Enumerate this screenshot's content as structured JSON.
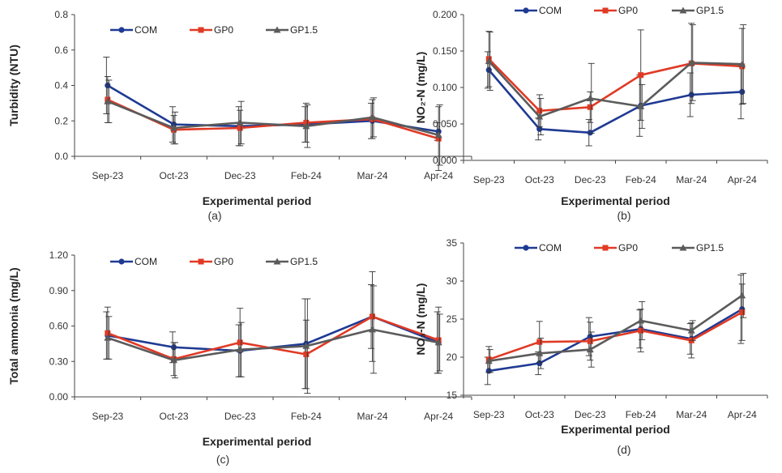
{
  "figure": {
    "colors": {
      "COM": "#1f3a93",
      "GP0": "#e03a25",
      "GP1.5": "#5b5b5b"
    },
    "legend": [
      "COM",
      "GP0",
      "GP1.5"
    ]
  },
  "chart_data": [
    {
      "id": "a",
      "type": "line",
      "panel_label": "(a)",
      "title": "",
      "xlabel": "Experimental period",
      "ylabel": "Turbidity (NTU)",
      "categories": [
        "Sep-23",
        "Oct-23",
        "Dec-23",
        "Feb-24",
        "Mar-24",
        "Apr-24"
      ],
      "ylim": [
        0,
        0.8
      ],
      "yticks": [
        0,
        0.2,
        0.4,
        0.6,
        0.8
      ],
      "ytick_labels": [
        "0.0",
        "0.2",
        "0.4",
        "0.6",
        "0.8"
      ],
      "series": [
        {
          "name": "COM",
          "values": [
            0.4,
            0.18,
            0.17,
            0.18,
            0.2,
            0.14
          ],
          "errors": [
            0.16,
            0.1,
            0.11,
            0.1,
            0.1,
            0.05
          ]
        },
        {
          "name": "GP0",
          "values": [
            0.32,
            0.15,
            0.16,
            0.19,
            0.21,
            0.1
          ],
          "errors": [
            0.13,
            0.08,
            0.1,
            0.11,
            0.11,
            0.18
          ]
        },
        {
          "name": "GP1.5",
          "values": [
            0.31,
            0.16,
            0.19,
            0.17,
            0.22,
            0.12
          ],
          "errors": [
            0.12,
            0.09,
            0.12,
            0.12,
            0.11,
            0.17
          ]
        }
      ]
    },
    {
      "id": "b",
      "type": "line",
      "panel_label": "(b)",
      "title": "",
      "xlabel": "Experimental period",
      "ylabel": "NO₂-N  (mg/L)",
      "categories": [
        "Sep-23",
        "Oct-23",
        "Dec-23",
        "Feb-24",
        "Mar-24",
        "Apr-24"
      ],
      "ylim": [
        0,
        0.2
      ],
      "yticks": [
        0,
        0.05,
        0.1,
        0.15,
        0.2
      ],
      "ytick_labels": [
        "0.000",
        "0.050",
        "0.100",
        "0.150",
        "0.200"
      ],
      "series": [
        {
          "name": "COM",
          "values": [
            0.124,
            0.043,
            0.038,
            0.075,
            0.09,
            0.094
          ],
          "errors": [
            0.025,
            0.015,
            0.018,
            0.042,
            0.03,
            0.037
          ]
        },
        {
          "name": "GP0",
          "values": [
            0.139,
            0.068,
            0.073,
            0.117,
            0.133,
            0.129
          ],
          "errors": [
            0.038,
            0.022,
            0.021,
            0.062,
            0.055,
            0.052
          ]
        },
        {
          "name": "GP1.5",
          "values": [
            0.136,
            0.06,
            0.085,
            0.074,
            0.134,
            0.132
          ],
          "errors": [
            0.04,
            0.025,
            0.048,
            0.03,
            0.052,
            0.054
          ]
        }
      ]
    },
    {
      "id": "c",
      "type": "line",
      "panel_label": "(c)",
      "title": "",
      "xlabel": "Experimental period",
      "ylabel": "Total ammonia (mg/L)",
      "categories": [
        "Sep-23",
        "Oct-23",
        "Dec-23",
        "Feb-24",
        "Mar-24",
        "Apr-24"
      ],
      "ylim": [
        0,
        1.2
      ],
      "yticks": [
        0,
        0.3,
        0.6,
        0.9,
        1.2
      ],
      "ytick_labels": [
        "0.00",
        "0.30",
        "0.60",
        "0.90",
        "1.20"
      ],
      "series": [
        {
          "name": "COM",
          "values": [
            0.52,
            0.42,
            0.39,
            0.45,
            0.68,
            0.46
          ],
          "errors": [
            0.2,
            0.13,
            0.22,
            0.38,
            0.27,
            0.26
          ]
        },
        {
          "name": "GP0",
          "values": [
            0.54,
            0.32,
            0.46,
            0.36,
            0.68,
            0.48
          ],
          "errors": [
            0.22,
            0.14,
            0.29,
            0.29,
            0.38,
            0.28
          ]
        },
        {
          "name": "GP1.5",
          "values": [
            0.5,
            0.31,
            0.4,
            0.43,
            0.57,
            0.46
          ],
          "errors": [
            0.18,
            0.15,
            0.23,
            0.4,
            0.37,
            0.24
          ]
        }
      ]
    },
    {
      "id": "d",
      "type": "line",
      "panel_label": "(d)",
      "title": "",
      "xlabel": "Experimental period",
      "ylabel": "NO₃-N (mg/L)",
      "categories": [
        "Sep-23",
        "Oct-23",
        "Dec-23",
        "Feb-24",
        "Mar-24",
        "Apr-24"
      ],
      "ylim": [
        15,
        35
      ],
      "yticks": [
        15,
        20,
        25,
        30,
        35
      ],
      "ytick_labels": [
        "15",
        "20",
        "25",
        "30",
        "35"
      ],
      "series": [
        {
          "name": "COM",
          "values": [
            18.2,
            19.2,
            22.7,
            23.7,
            22.4,
            26.3
          ],
          "errors": [
            1.8,
            1.5,
            2.5,
            2.5,
            2.0,
            4.5
          ]
        },
        {
          "name": "GP0",
          "values": [
            19.7,
            22.0,
            22.1,
            23.5,
            22.2,
            25.9
          ],
          "errors": [
            1.7,
            2.7,
            2.5,
            2.8,
            2.3,
            3.7
          ]
        },
        {
          "name": "GP1.5",
          "values": [
            19.5,
            20.5,
            21.0,
            24.8,
            23.5,
            28.1
          ],
          "errors": [
            1.5,
            2.0,
            2.3,
            2.5,
            1.3,
            2.9
          ]
        }
      ]
    }
  ]
}
